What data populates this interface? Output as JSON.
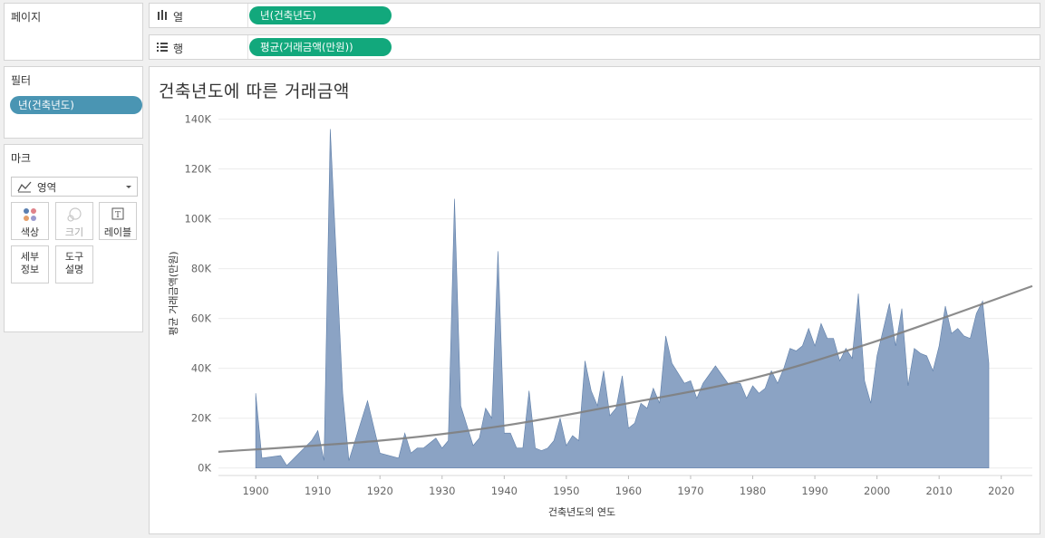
{
  "left_panel": {
    "pages_label": "페이지",
    "filters_label": "필터",
    "filter_pill": "년(건축년도)",
    "marks_label": "마크",
    "mark_type": "영역",
    "mark_buttons": [
      {
        "label": "색상",
        "icon": "color-dots-icon",
        "enabled": true
      },
      {
        "label": "크기",
        "icon": "size-icon",
        "enabled": false
      },
      {
        "label": "레이블",
        "icon": "label-icon",
        "enabled": true
      },
      {
        "label": "세부\n정보",
        "icon": "",
        "enabled": true
      },
      {
        "label": "도구\n설명",
        "icon": "",
        "enabled": true
      }
    ]
  },
  "shelves": {
    "columns_label": "열",
    "columns_pill": "년(건축년도)",
    "rows_label": "행",
    "rows_pill": "평균(거래금액(만원))"
  },
  "colors": {
    "area_fill": "#8ba3c4",
    "area_stroke": "#5e7ea8",
    "trend_line": "#7f7f7f",
    "filter_pill": "#4a95b3",
    "shelf_pill": "#12a87c"
  },
  "chart_data": {
    "type": "area",
    "title": "건축년도에 따른 거래금액",
    "xlabel": "건축년도의 연도",
    "ylabel": "평균 거래금액(만원)",
    "xlim": [
      1894,
      2025
    ],
    "ylim": [
      -3000,
      142000
    ],
    "x_ticks": [
      1900,
      1910,
      1920,
      1930,
      1940,
      1950,
      1960,
      1970,
      1980,
      1990,
      2000,
      2010,
      2020
    ],
    "y_ticks": [
      0,
      20000,
      40000,
      60000,
      80000,
      100000,
      120000,
      140000
    ],
    "y_tick_labels": [
      "0K",
      "20K",
      "40K",
      "60K",
      "80K",
      "100K",
      "120K",
      "140K"
    ],
    "grid": true,
    "series": [
      {
        "points": [
          [
            1900,
            30000
          ],
          [
            1901,
            4000
          ],
          [
            1904,
            5000
          ],
          [
            1905,
            1000
          ],
          [
            1907,
            6000
          ],
          [
            1909,
            11000
          ],
          [
            1910,
            15000
          ],
          [
            1911,
            3000
          ],
          [
            1912,
            136000
          ],
          [
            1914,
            30000
          ],
          [
            1915,
            3000
          ],
          [
            1918,
            27000
          ],
          [
            1920,
            6000
          ],
          [
            1923,
            4000
          ],
          [
            1924,
            14000
          ],
          [
            1925,
            6000
          ],
          [
            1926,
            8000
          ],
          [
            1927,
            8000
          ],
          [
            1929,
            12000
          ],
          [
            1930,
            8000
          ],
          [
            1931,
            11000
          ],
          [
            1932,
            108000
          ],
          [
            1933,
            25000
          ],
          [
            1935,
            9000
          ],
          [
            1936,
            12000
          ],
          [
            1937,
            24000
          ],
          [
            1938,
            20000
          ],
          [
            1939,
            87000
          ],
          [
            1940,
            14000
          ],
          [
            1941,
            14000
          ],
          [
            1942,
            8000
          ],
          [
            1943,
            8000
          ],
          [
            1944,
            31000
          ],
          [
            1945,
            8000
          ],
          [
            1946,
            7000
          ],
          [
            1947,
            8000
          ],
          [
            1948,
            11000
          ],
          [
            1949,
            20000
          ],
          [
            1950,
            9000
          ],
          [
            1951,
            13000
          ],
          [
            1952,
            11000
          ],
          [
            1953,
            43000
          ],
          [
            1954,
            31000
          ],
          [
            1955,
            25000
          ],
          [
            1956,
            39000
          ],
          [
            1957,
            21000
          ],
          [
            1958,
            24000
          ],
          [
            1959,
            37000
          ],
          [
            1960,
            16000
          ],
          [
            1961,
            18000
          ],
          [
            1962,
            26000
          ],
          [
            1963,
            24000
          ],
          [
            1964,
            32000
          ],
          [
            1965,
            26000
          ],
          [
            1966,
            53000
          ],
          [
            1967,
            42000
          ],
          [
            1968,
            38000
          ],
          [
            1969,
            34000
          ],
          [
            1970,
            35000
          ],
          [
            1971,
            28000
          ],
          [
            1972,
            34000
          ],
          [
            1974,
            41000
          ],
          [
            1976,
            34000
          ],
          [
            1978,
            34000
          ],
          [
            1979,
            28000
          ],
          [
            1980,
            33000
          ],
          [
            1981,
            30000
          ],
          [
            1982,
            32000
          ],
          [
            1983,
            39000
          ],
          [
            1984,
            34000
          ],
          [
            1985,
            40000
          ],
          [
            1986,
            48000
          ],
          [
            1987,
            47000
          ],
          [
            1988,
            49000
          ],
          [
            1989,
            56000
          ],
          [
            1990,
            49000
          ],
          [
            1991,
            58000
          ],
          [
            1992,
            52000
          ],
          [
            1993,
            52000
          ],
          [
            1994,
            43000
          ],
          [
            1995,
            48000
          ],
          [
            1996,
            44000
          ],
          [
            1997,
            70000
          ],
          [
            1998,
            35000
          ],
          [
            1999,
            26000
          ],
          [
            2000,
            45000
          ],
          [
            2002,
            66000
          ],
          [
            2003,
            49000
          ],
          [
            2004,
            64000
          ],
          [
            2005,
            33000
          ],
          [
            2006,
            48000
          ],
          [
            2007,
            46000
          ],
          [
            2008,
            45000
          ],
          [
            2009,
            39000
          ],
          [
            2010,
            49000
          ],
          [
            2011,
            65000
          ],
          [
            2012,
            54000
          ],
          [
            2013,
            56000
          ],
          [
            2014,
            53000
          ],
          [
            2015,
            52000
          ],
          [
            2016,
            62000
          ],
          [
            2017,
            67000
          ],
          [
            2018,
            42000
          ]
        ]
      }
    ],
    "trend_line": {
      "type": "exponential",
      "points": [
        [
          1894,
          6500
        ],
        [
          1920,
          11000
        ],
        [
          1940,
          17000
        ],
        [
          1960,
          26000
        ],
        [
          1980,
          36000
        ],
        [
          2000,
          51000
        ],
        [
          2025,
          73000
        ]
      ]
    }
  }
}
